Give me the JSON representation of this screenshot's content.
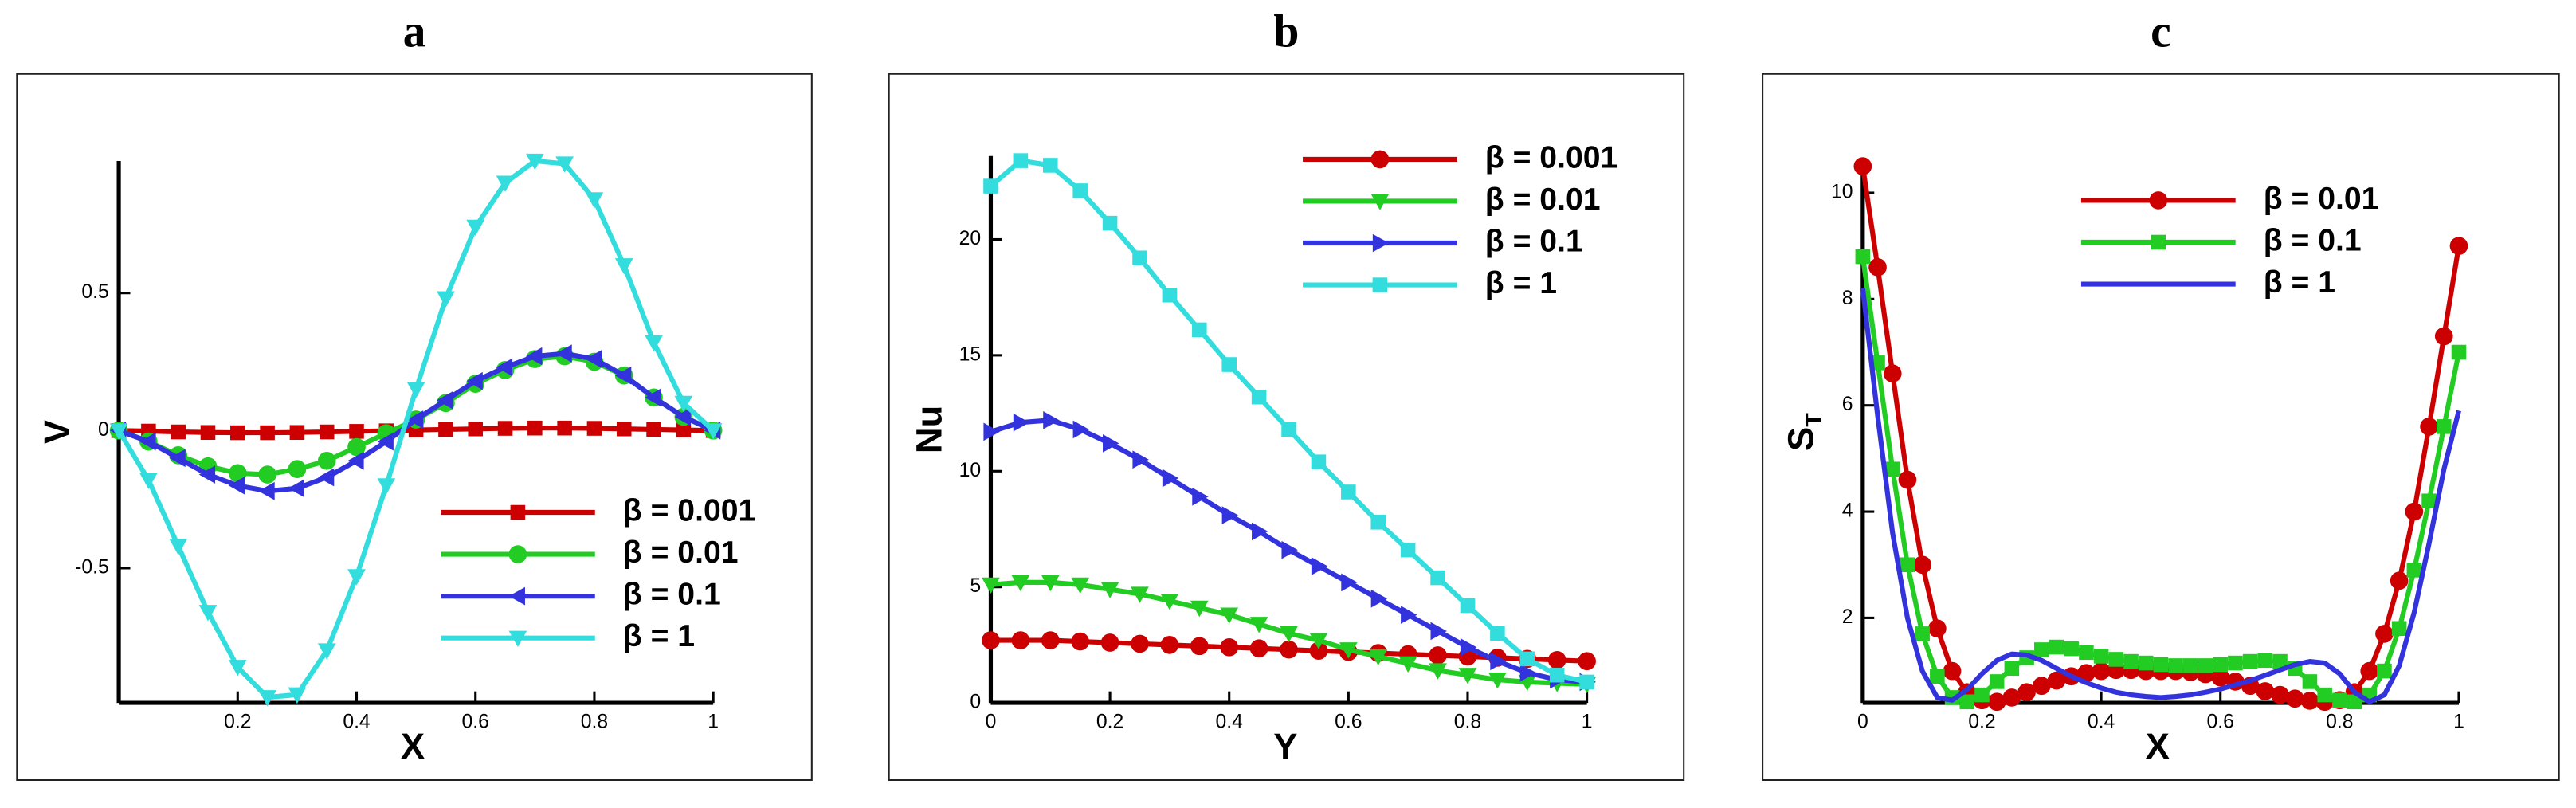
{
  "chart_data": [
    {
      "type": "line",
      "title": "a",
      "xlabel": "X",
      "ylabel": "V",
      "legend": "lower right",
      "xlim": [
        0,
        1
      ],
      "ylim": [
        -0.99,
        0.98
      ],
      "xticks": [
        0.2,
        0.4,
        0.6,
        0.8,
        1
      ],
      "yticks": [
        -0.5,
        0,
        0.5
      ],
      "x": [
        0,
        0.05,
        0.1,
        0.15,
        0.2,
        0.25,
        0.3,
        0.35,
        0.4,
        0.45,
        0.5,
        0.55,
        0.6,
        0.65,
        0.7,
        0.75,
        0.8,
        0.85,
        0.9,
        0.95,
        1
      ],
      "series": [
        {
          "name": "β = 0.001",
          "color": "#cc0000",
          "marker": "square",
          "values": [
            0,
            -0.002,
            -0.005,
            -0.007,
            -0.008,
            -0.008,
            -0.007,
            -0.005,
            -0.003,
            -0.001,
            0.002,
            0.004,
            0.006,
            0.008,
            0.009,
            0.009,
            0.008,
            0.006,
            0.004,
            0.002,
            0
          ]
        },
        {
          "name": "β = 0.01",
          "color": "#22cc22",
          "marker": "circle",
          "values": [
            0,
            -0.04,
            -0.09,
            -0.13,
            -0.155,
            -0.16,
            -0.14,
            -0.11,
            -0.06,
            -0.01,
            0.04,
            0.1,
            0.17,
            0.22,
            0.26,
            0.27,
            0.25,
            0.2,
            0.12,
            0.05,
            0
          ]
        },
        {
          "name": "β = 0.1",
          "color": "#3333dd",
          "marker": "triangle-left",
          "values": [
            0,
            -0.04,
            -0.1,
            -0.16,
            -0.2,
            -0.22,
            -0.21,
            -0.17,
            -0.11,
            -0.04,
            0.04,
            0.11,
            0.18,
            0.23,
            0.27,
            0.28,
            0.26,
            0.2,
            0.12,
            0.05,
            0
          ]
        },
        {
          "name": "β = 1",
          "color": "#33dddd",
          "marker": "triangle-down",
          "values": [
            0,
            -0.18,
            -0.42,
            -0.66,
            -0.86,
            -0.97,
            -0.96,
            -0.8,
            -0.53,
            -0.2,
            0.15,
            0.48,
            0.74,
            0.9,
            0.98,
            0.97,
            0.84,
            0.6,
            0.32,
            0.1,
            0
          ]
        }
      ]
    },
    {
      "type": "line",
      "title": "b",
      "xlabel": "Y",
      "ylabel": "Nu",
      "legend": "upper right",
      "xlim": [
        0,
        1
      ],
      "ylim": [
        0,
        23.6
      ],
      "xticks": [
        0,
        0.2,
        0.4,
        0.6,
        0.8,
        1
      ],
      "yticks": [
        0,
        5,
        10,
        15,
        20
      ],
      "x": [
        0,
        0.05,
        0.1,
        0.15,
        0.2,
        0.25,
        0.3,
        0.35,
        0.4,
        0.45,
        0.5,
        0.55,
        0.6,
        0.65,
        0.7,
        0.75,
        0.8,
        0.85,
        0.9,
        0.95,
        1
      ],
      "series": [
        {
          "name": "β = 0.001",
          "color": "#cc0000",
          "marker": "circle",
          "values": [
            2.7,
            2.7,
            2.7,
            2.65,
            2.6,
            2.55,
            2.5,
            2.45,
            2.4,
            2.35,
            2.3,
            2.25,
            2.2,
            2.15,
            2.1,
            2.05,
            2.0,
            1.95,
            1.9,
            1.85,
            1.8
          ]
        },
        {
          "name": "β = 0.01",
          "color": "#22cc22",
          "marker": "triangle-down",
          "values": [
            5.1,
            5.2,
            5.2,
            5.1,
            4.9,
            4.7,
            4.4,
            4.1,
            3.8,
            3.4,
            3.0,
            2.7,
            2.3,
            2.0,
            1.7,
            1.4,
            1.2,
            1.0,
            0.9,
            0.85,
            0.8
          ]
        },
        {
          "name": "β = 0.1",
          "color": "#3333dd",
          "marker": "triangle-right",
          "values": [
            11.7,
            12.1,
            12.2,
            11.8,
            11.2,
            10.5,
            9.7,
            8.9,
            8.1,
            7.4,
            6.6,
            5.9,
            5.2,
            4.5,
            3.8,
            3.1,
            2.4,
            1.8,
            1.3,
            1.0,
            0.9
          ]
        },
        {
          "name": "β = 1",
          "color": "#33dddd",
          "marker": "square",
          "values": [
            22.3,
            23.4,
            23.2,
            22.1,
            20.7,
            19.2,
            17.6,
            16.1,
            14.6,
            13.2,
            11.8,
            10.4,
            9.1,
            7.8,
            6.6,
            5.4,
            4.2,
            3.0,
            1.9,
            1.2,
            0.9
          ]
        }
      ]
    },
    {
      "type": "line",
      "title": "c",
      "xlabel": "X",
      "ylabel": "S",
      "ylabel_subscript": "T",
      "legend": "upper center",
      "xlim": [
        0,
        1
      ],
      "ylim": [
        0.4,
        10.6
      ],
      "xticks": [
        0,
        0.2,
        0.4,
        0.6,
        0.8,
        1
      ],
      "yticks": [
        2,
        4,
        6,
        8,
        10
      ],
      "x": [
        0,
        0.025,
        0.05,
        0.075,
        0.1,
        0.125,
        0.15,
        0.175,
        0.2,
        0.225,
        0.25,
        0.275,
        0.3,
        0.325,
        0.35,
        0.375,
        0.4,
        0.425,
        0.45,
        0.475,
        0.5,
        0.525,
        0.55,
        0.575,
        0.6,
        0.625,
        0.65,
        0.675,
        0.7,
        0.725,
        0.75,
        0.775,
        0.8,
        0.825,
        0.85,
        0.875,
        0.9,
        0.925,
        0.95,
        0.975,
        1
      ],
      "series": [
        {
          "name": "β = 0.01",
          "color": "#cc0000",
          "marker": "circle",
          "values": [
            10.5,
            8.6,
            6.6,
            4.6,
            3.0,
            1.8,
            1.0,
            0.6,
            0.45,
            0.42,
            0.5,
            0.6,
            0.72,
            0.82,
            0.9,
            0.96,
            1.0,
            1.02,
            1.02,
            1.0,
            1.0,
            1.0,
            0.98,
            0.94,
            0.88,
            0.8,
            0.72,
            0.62,
            0.55,
            0.48,
            0.44,
            0.42,
            0.45,
            0.6,
            1.0,
            1.7,
            2.7,
            4.0,
            5.6,
            7.3,
            9.0
          ]
        },
        {
          "name": "β = 0.1",
          "color": "#22cc22",
          "marker": "square",
          "values": [
            8.8,
            6.8,
            4.8,
            3.0,
            1.7,
            0.9,
            0.5,
            0.42,
            0.55,
            0.8,
            1.05,
            1.25,
            1.4,
            1.45,
            1.42,
            1.35,
            1.28,
            1.22,
            1.18,
            1.15,
            1.12,
            1.1,
            1.1,
            1.1,
            1.12,
            1.15,
            1.18,
            1.2,
            1.18,
            1.05,
            0.8,
            0.55,
            0.45,
            0.42,
            0.55,
            1.0,
            1.8,
            2.9,
            4.2,
            5.6,
            7.0
          ]
        },
        {
          "name": "β = 1",
          "color": "#3333dd",
          "marker": "none",
          "values": [
            8.2,
            5.8,
            3.6,
            2.0,
            1.0,
            0.5,
            0.45,
            0.65,
            0.95,
            1.2,
            1.32,
            1.3,
            1.2,
            1.05,
            0.9,
            0.78,
            0.68,
            0.6,
            0.55,
            0.52,
            0.5,
            0.52,
            0.55,
            0.6,
            0.66,
            0.74,
            0.82,
            0.92,
            1.02,
            1.12,
            1.18,
            1.15,
            0.95,
            0.6,
            0.42,
            0.55,
            1.1,
            2.1,
            3.4,
            4.8,
            5.9
          ]
        }
      ]
    }
  ]
}
